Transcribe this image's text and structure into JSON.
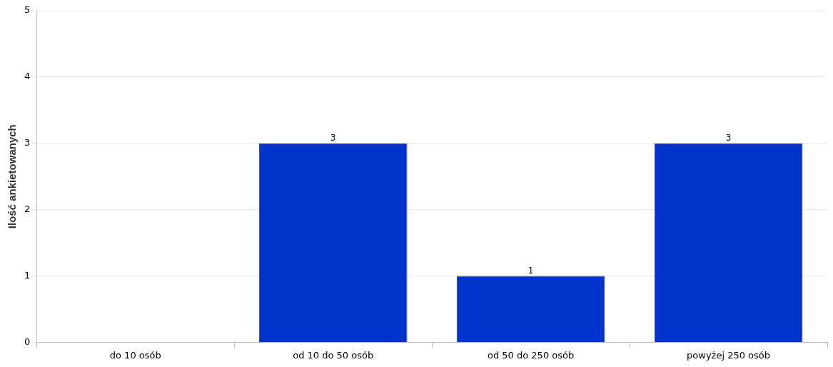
{
  "chart_data": {
    "type": "bar",
    "ylabel": "Ilość ankietowanych",
    "categories": [
      "do 10 osób",
      "od 10 do 50 osób",
      "od 50 do 250 osób",
      "powyżej 250 osób"
    ],
    "values": [
      0,
      3,
      1,
      3
    ],
    "color": "#0033cc",
    "value_labels": [
      null,
      "3",
      "1",
      "3"
    ],
    "ylim": [
      0,
      5
    ],
    "yticks": [
      0,
      1,
      2,
      3,
      4,
      5
    ],
    "grid": "y"
  }
}
